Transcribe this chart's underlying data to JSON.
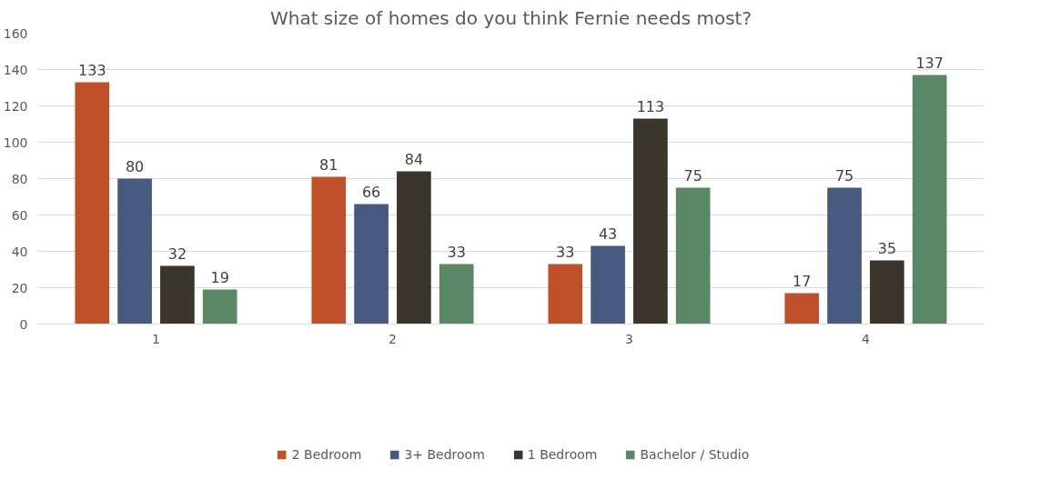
{
  "chart_data": {
    "type": "bar",
    "title": "What size of homes do you think Fernie needs most?",
    "categories": [
      "1",
      "2",
      "3",
      "4"
    ],
    "series": [
      {
        "name": "2 Bedroom",
        "color": "#c0502a",
        "values": [
          133,
          81,
          33,
          17
        ]
      },
      {
        "name": "3+ Bedroom",
        "color": "#485a80",
        "values": [
          80,
          66,
          43,
          75
        ]
      },
      {
        "name": "1 Bedroom",
        "color": "#3a362b",
        "values": [
          32,
          84,
          113,
          35
        ]
      },
      {
        "name": "Bachelor / Studio",
        "color": "#5a8766",
        "values": [
          19,
          33,
          75,
          137
        ]
      }
    ],
    "ylim": [
      0,
      160
    ],
    "yticks": [
      0,
      20,
      40,
      60,
      80,
      100,
      120,
      140,
      160
    ],
    "grid": "y",
    "legend": "bottom",
    "data_labels": true
  }
}
